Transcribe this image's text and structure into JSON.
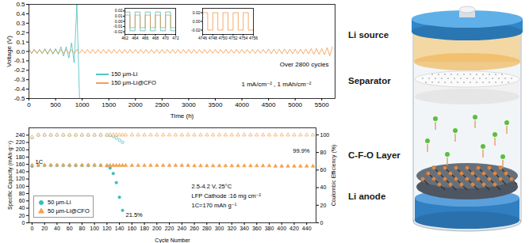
{
  "chart_data": [
    {
      "type": "line",
      "xlabel": "Time (h)",
      "ylabel": "Voltage (V)",
      "grid": false,
      "legend": "lower left",
      "xlim": [
        0,
        5750
      ],
      "xticks": [
        0,
        500,
        1000,
        1500,
        2000,
        2500,
        3000,
        3500,
        4000,
        4500,
        5000,
        5500
      ],
      "ylim": [
        -0.5,
        0.5
      ],
      "yticks": [
        -0.5,
        -0.4,
        -0.3,
        -0.2,
        -0.1,
        {
          "value": 0,
          "label": "0.0"
        },
        0.1,
        0.2,
        0.3,
        0.4,
        0.5
      ],
      "annotations": [
        "Over 2800 cycles",
        "1 mA/cm⁻² , 1 mAh/cm⁻²"
      ],
      "x": [
        0,
        50,
        100,
        150,
        200,
        250,
        300,
        350,
        400,
        450,
        500,
        550,
        600,
        650,
        700,
        750,
        800,
        850,
        900,
        950,
        1000,
        1050,
        1100,
        1150,
        1200,
        1250,
        1300,
        1350,
        1400,
        1450,
        1500,
        1550,
        1600,
        1650,
        1700,
        1750,
        1800,
        1850,
        1900,
        1950,
        2000,
        2050,
        2100,
        2150,
        2200,
        2250,
        2300,
        2350,
        2400,
        2450,
        2500,
        2550,
        2600,
        2650,
        2700,
        2750,
        2800,
        2850,
        2900,
        2950,
        3000,
        3050,
        3100,
        3150,
        3200,
        3250,
        3300,
        3350,
        3400,
        3450,
        3500,
        3550,
        3600,
        3650,
        3700,
        3750,
        3800,
        3850,
        3900,
        3950,
        4000,
        4050,
        4100,
        4150,
        4200,
        4250,
        4300,
        4350,
        4400,
        4450,
        4500,
        4550,
        4600,
        4650,
        4700,
        4750,
        4800,
        4850,
        4900,
        4950,
        5000,
        5050,
        5100,
        5150,
        5200,
        5250,
        5300,
        5350,
        5400,
        5450,
        5500,
        5550,
        5600,
        5650,
        5700
      ],
      "series": [
        {
          "name": "150 µm-Li",
          "color": "#2fb5b5",
          "values": [
            0.02,
            -0.02,
            0.02,
            -0.02,
            0.02,
            -0.02,
            0.03,
            -0.03,
            0.03,
            -0.03,
            0.03,
            -0.03,
            0.05,
            -0.05,
            0.05,
            -0.07,
            0.09,
            -0.12,
            0.5,
            -0.5,
            null,
            null,
            null,
            null,
            null,
            null,
            null,
            null,
            null,
            null,
            null,
            null,
            null,
            null,
            null,
            null,
            null,
            null,
            null,
            null,
            null,
            null,
            null,
            null,
            null,
            null,
            null,
            null,
            null,
            null,
            null,
            null,
            null,
            null,
            null,
            null,
            null,
            null,
            null,
            null,
            null,
            null,
            null,
            null,
            null,
            null,
            null,
            null,
            null,
            null,
            null,
            null,
            null,
            null,
            null,
            null,
            null,
            null,
            null,
            null,
            null,
            null,
            null,
            null,
            null,
            null,
            null,
            null,
            null,
            null,
            null,
            null,
            null,
            null,
            null,
            null,
            null,
            null,
            null,
            null,
            null,
            null,
            null,
            null,
            null,
            null,
            null,
            null,
            null,
            null,
            null,
            null,
            null,
            null,
            null
          ]
        },
        {
          "name": "150 µm-Li@CFO",
          "color": "#f0882a",
          "values": [
            0.02,
            -0.02,
            0.02,
            -0.02,
            0.02,
            -0.02,
            0.02,
            -0.02,
            0.02,
            -0.02,
            0.02,
            -0.02,
            0.02,
            -0.02,
            0.02,
            -0.02,
            0.02,
            -0.02,
            0.02,
            -0.02,
            0.02,
            -0.02,
            0.02,
            -0.02,
            0.02,
            -0.02,
            0.02,
            -0.02,
            0.02,
            -0.02,
            0.02,
            -0.02,
            0.02,
            -0.02,
            0.02,
            -0.02,
            0.02,
            -0.02,
            0.02,
            -0.02,
            0.02,
            -0.02,
            0.02,
            -0.02,
            0.02,
            -0.02,
            0.02,
            -0.02,
            0.02,
            -0.02,
            0.02,
            -0.02,
            0.02,
            -0.02,
            0.02,
            -0.02,
            0.02,
            -0.02,
            0.02,
            -0.02,
            0.02,
            -0.02,
            0.02,
            -0.02,
            0.02,
            -0.02,
            0.02,
            -0.02,
            0.02,
            -0.02,
            0.02,
            -0.02,
            0.02,
            -0.02,
            0.02,
            -0.02,
            0.02,
            -0.02,
            0.02,
            -0.02,
            0.02,
            -0.02,
            0.02,
            -0.02,
            0.02,
            -0.02,
            0.02,
            -0.02,
            0.02,
            -0.02,
            0.025,
            -0.025,
            0.025,
            -0.025,
            0.025,
            -0.025,
            0.025,
            -0.025,
            0.025,
            -0.025,
            0.025,
            -0.025,
            0.025,
            -0.025,
            0.025,
            -0.025,
            0.03,
            -0.03,
            0.03,
            -0.03,
            0.03,
            -0.035,
            0.04,
            -0.045,
            0.05
          ]
        }
      ]
    },
    {
      "type": "line",
      "grid": false,
      "xlim": [
        462,
        472
      ],
      "xticks": [
        462,
        464,
        466,
        468,
        470,
        472
      ],
      "ylim": [
        -0.025,
        0.025
      ],
      "yticks": [
        -0.02,
        -0.01,
        {
          "value": 0,
          "label": "0.00"
        },
        0.01,
        0.02
      ],
      "x": [
        462,
        463,
        463,
        464,
        464,
        465,
        465,
        466,
        466,
        467,
        467,
        468,
        468,
        469,
        469,
        470,
        470,
        471,
        471,
        472
      ],
      "series": [
        {
          "color": "#2fb5b5",
          "values": [
            0.018,
            0.018,
            -0.018,
            -0.018,
            0.018,
            0.018,
            -0.018,
            -0.018,
            0.018,
            0.018,
            -0.018,
            -0.018,
            0.018,
            0.018,
            -0.018,
            -0.018,
            0.018,
            0.018,
            -0.018,
            -0.018
          ]
        },
        {
          "color": "#f0882a",
          "values": [
            0.012,
            0.012,
            -0.012,
            -0.012,
            0.012,
            0.012,
            -0.012,
            -0.012,
            0.012,
            0.012,
            -0.012,
            -0.012,
            0.012,
            0.012,
            -0.012,
            -0.012,
            0.012,
            0.012,
            -0.012,
            -0.012
          ]
        }
      ]
    },
    {
      "type": "line",
      "grid": false,
      "xlim": [
        4746,
        4756
      ],
      "xticks": [
        4746,
        4748,
        4750,
        4752,
        4754,
        4756
      ],
      "ylim": [
        -0.03,
        0.03
      ],
      "yticks": [
        -0.02,
        {
          "value": 0,
          "label": "0.00"
        },
        0.02
      ],
      "x": [
        4746,
        4747,
        4747,
        4748,
        4748,
        4749,
        4749,
        4750,
        4750,
        4751,
        4751,
        4752,
        4752,
        4753,
        4753,
        4754,
        4754,
        4755,
        4755,
        4756
      ],
      "series": [
        {
          "color": "#f0882a",
          "values": [
            0.02,
            0.02,
            -0.02,
            -0.02,
            0.02,
            0.02,
            -0.02,
            -0.02,
            0.02,
            0.02,
            -0.02,
            -0.02,
            0.02,
            0.02,
            -0.02,
            -0.02,
            0.02,
            0.02,
            -0.02,
            -0.02
          ]
        }
      ]
    },
    {
      "type": "scatter",
      "xlabel": "Cycle Number",
      "ylabel": "Specific Capacity (mAh·g⁻¹)",
      "y2label": "Coulombic Efficiency (%)",
      "grid": false,
      "legend": "lower left",
      "xlim": [
        -5,
        455
      ],
      "xticks": [
        0,
        20,
        40,
        60,
        80,
        100,
        120,
        140,
        160,
        180,
        200,
        220,
        240,
        260,
        280,
        300,
        320,
        340,
        360,
        380,
        400,
        420,
        440
      ],
      "ylim": [
        0,
        260
      ],
      "yticks": [
        0,
        20,
        40,
        60,
        80,
        100,
        120,
        140,
        160,
        180,
        200,
        220,
        240
      ],
      "y2lim": [
        0,
        108
      ],
      "y2ticks": [
        0,
        20,
        40,
        60,
        80,
        100
      ],
      "annotations": [
        "1C",
        "99.9%",
        "21.5%",
        "2.5-4.2 V, 25°C",
        "LFP Cathode :16 mg cm⁻²",
        "1C=170 mAh g⁻¹"
      ],
      "x": [
        0,
        10,
        20,
        30,
        40,
        50,
        60,
        70,
        80,
        90,
        100,
        110,
        120,
        125,
        130,
        135,
        140,
        145,
        150,
        160,
        170,
        180,
        190,
        200,
        210,
        220,
        230,
        240,
        250,
        260,
        270,
        280,
        290,
        300,
        310,
        320,
        330,
        340,
        350,
        360,
        370,
        380,
        390,
        400,
        410,
        420,
        430,
        440,
        450
      ],
      "series": [
        {
          "name": "50 µm-Li",
          "color": "#3bbcbc",
          "marker": "circle",
          "values": [
            155,
            157,
            157,
            157,
            157,
            157,
            157,
            157,
            157,
            157,
            157,
            157,
            156,
            150,
            135,
            110,
            70,
            34,
            null,
            null,
            null,
            null,
            null,
            null,
            null,
            null,
            null,
            null,
            null,
            null,
            null,
            null,
            null,
            null,
            null,
            null,
            null,
            null,
            null,
            null,
            null,
            null,
            null,
            null,
            null,
            null,
            null,
            null,
            null
          ]
        },
        {
          "name": "50 µm-Li@CFO",
          "color": "#f5a14c",
          "marker": "triangle",
          "values": [
            158,
            158,
            158,
            158,
            158,
            158,
            158,
            158,
            158,
            158,
            158,
            157,
            157,
            157,
            157,
            157,
            157,
            157,
            157,
            157,
            157,
            157,
            157,
            157,
            157,
            157,
            157,
            157,
            157,
            156,
            156,
            156,
            156,
            156,
            156,
            156,
            156,
            156,
            156,
            156,
            156,
            156,
            155,
            155,
            155,
            155,
            155,
            155,
            155
          ]
        },
        {
          "axis": "y2",
          "color": "#3bbcbc",
          "marker": "circle",
          "values": [
            97,
            99.8,
            99.8,
            99.8,
            99.8,
            99.8,
            99.8,
            99.8,
            99.8,
            99.8,
            99.8,
            99.8,
            99.7,
            99.5,
            98.5,
            96.5,
            94,
            91.5,
            null,
            null,
            null,
            null,
            null,
            null,
            null,
            null,
            null,
            null,
            null,
            null,
            null,
            null,
            null,
            null,
            null,
            null,
            null,
            null,
            null,
            null,
            null,
            null,
            null,
            null,
            null,
            null,
            null,
            null,
            null
          ]
        },
        {
          "axis": "y2",
          "color": "#f5a14c",
          "marker": "triangle",
          "values": [
            97.5,
            99.9,
            99.9,
            99.9,
            99.9,
            99.9,
            99.9,
            99.9,
            99.9,
            99.9,
            99.9,
            99.9,
            99.9,
            99.9,
            99.9,
            99.9,
            99.9,
            99.9,
            99.9,
            99.9,
            99.9,
            99.9,
            99.9,
            99.9,
            99.9,
            99.9,
            99.9,
            99.9,
            99.9,
            99.9,
            99.9,
            99.9,
            99.9,
            99.9,
            99.9,
            99.9,
            99.9,
            99.9,
            99.9,
            99.9,
            99.9,
            99.9,
            99.9,
            99.9,
            99.9,
            99.9,
            99.9,
            99.9,
            99.9
          ]
        }
      ]
    }
  ],
  "diagram": {
    "labels": [
      "Li source",
      "Separator",
      "C-F-O Layer",
      "Li anode"
    ]
  }
}
